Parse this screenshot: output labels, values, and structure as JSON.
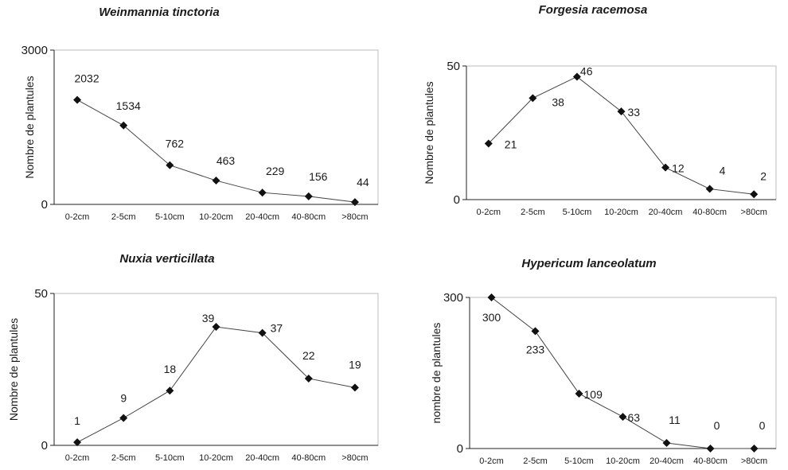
{
  "chart_data": [
    {
      "type": "line",
      "title": "Weinmannia tinctoria",
      "ylabel": "Nombre de plantules",
      "ylim": [
        0,
        3000
      ],
      "yticks": [
        0,
        3000
      ],
      "categories": [
        "0-2cm",
        "2-5cm",
        "5-10cm",
        "10-20cm",
        "20-40cm",
        "40-80cm",
        ">80cm"
      ],
      "values": [
        2032,
        1534,
        762,
        463,
        229,
        156,
        44
      ],
      "labels": [
        "2032",
        "1534",
        "762",
        "463",
        "229",
        "156",
        "44"
      ]
    },
    {
      "type": "line",
      "title": "Forgesia racemosa",
      "ylabel": "Nombre de plantules",
      "ylim": [
        0,
        50
      ],
      "yticks": [
        0,
        50
      ],
      "categories": [
        "0-2cm",
        "2-5cm",
        "5-10cm",
        "10-20cm",
        "20-40cm",
        "40-80cm",
        ">80cm"
      ],
      "values": [
        21,
        38,
        46,
        33,
        12,
        4,
        2
      ],
      "labels": [
        "21",
        "38",
        "46",
        "33",
        "12",
        "4",
        "2"
      ]
    },
    {
      "type": "line",
      "title": "Nuxia verticillata",
      "ylabel": "Nombre de plantules",
      "ylim": [
        0,
        50
      ],
      "yticks": [
        0,
        50
      ],
      "categories": [
        "0-2cm",
        "2-5cm",
        "5-10cm",
        "10-20cm",
        "20-40cm",
        "40-80cm",
        ">80cm"
      ],
      "values": [
        1,
        9,
        18,
        39,
        37,
        22,
        19
      ],
      "labels": [
        "1",
        "9",
        "18",
        "39",
        "37",
        "22",
        "19"
      ]
    },
    {
      "type": "line",
      "title": "Hypericum lanceolatum",
      "ylabel": "nombre de plantules",
      "ylim": [
        0,
        300
      ],
      "yticks": [
        0,
        300
      ],
      "categories": [
        "0-2cm",
        "2-5cm",
        "5-10cm",
        "10-20cm",
        "20-40cm",
        "40-80cm",
        ">80cm"
      ],
      "values": [
        300,
        233,
        109,
        63,
        11,
        0,
        0
      ],
      "labels": [
        "300",
        "233",
        "109",
        "63",
        "11",
        "0",
        "0"
      ]
    }
  ]
}
